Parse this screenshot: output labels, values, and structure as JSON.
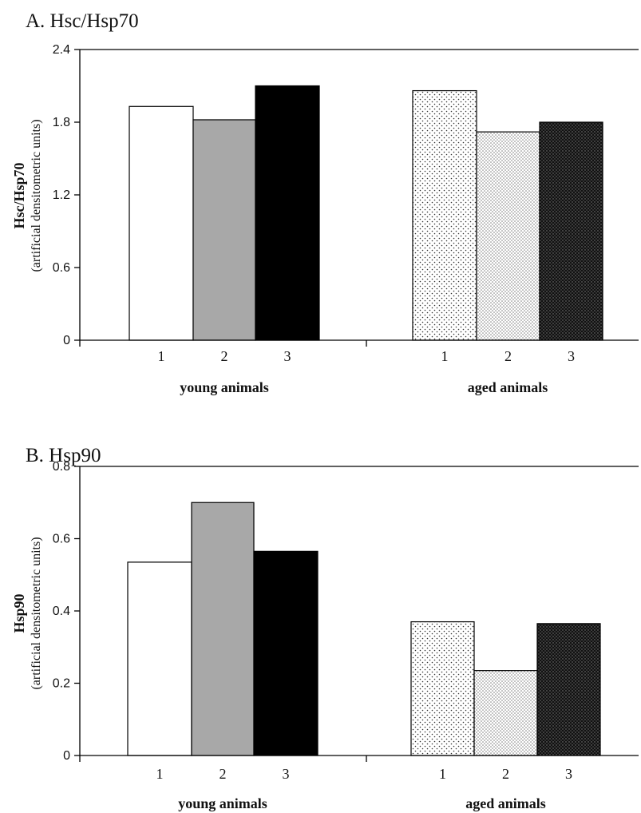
{
  "chart_data": [
    {
      "type": "bar",
      "title": "A. Hsc/Hsp70",
      "ylabel": "Hsc/Hsp70",
      "ylabel_sub": "(artificial densitometric units)",
      "ylim": [
        0,
        2.4
      ],
      "yticks": [
        "0",
        "0.6",
        "1.2",
        "1.8",
        "2.4"
      ],
      "groups": [
        {
          "label": "young animals",
          "categories": [
            "1",
            "2",
            "3"
          ],
          "values": [
            1.93,
            1.82,
            2.1
          ]
        },
        {
          "label": "aged animals",
          "categories": [
            "1",
            "2",
            "3"
          ],
          "values": [
            2.06,
            1.72,
            1.8
          ]
        }
      ],
      "grid": false
    },
    {
      "type": "bar",
      "title": "B. Hsp90",
      "ylabel": "Hsp90",
      "ylabel_sub": "(artificial densitometric units)",
      "ylim": [
        0,
        0.8
      ],
      "yticks": [
        "0",
        "0.2",
        "0.4",
        "0.6",
        "0.8"
      ],
      "groups": [
        {
          "label": "young animals",
          "categories": [
            "1",
            "2",
            "3"
          ],
          "values": [
            0.535,
            0.7,
            0.565
          ]
        },
        {
          "label": "aged animals",
          "categories": [
            "1",
            "2",
            "3"
          ],
          "values": [
            0.37,
            0.235,
            0.365
          ]
        }
      ],
      "grid": false
    }
  ],
  "bar_fills": [
    "#ffffff",
    "#a8a8a8",
    "#000000",
    "dots-sparse",
    "dots-dense",
    "dots-dark"
  ]
}
